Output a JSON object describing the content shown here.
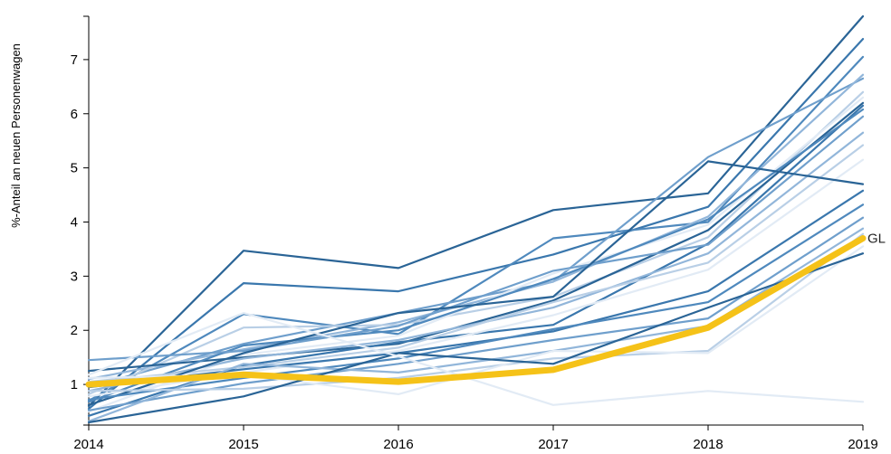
{
  "chart_data": {
    "type": "line",
    "ylabel": "%-Anteil an neuen Personenwagen",
    "xlabel": "",
    "x": [
      2014,
      2015,
      2016,
      2017,
      2018,
      2019
    ],
    "x_tick_labels": [
      "2014",
      "2015",
      "2016",
      "2017",
      "2018",
      "2019"
    ],
    "y_tick_labels": [
      "1",
      "2",
      "3",
      "4",
      "5",
      "6",
      "7"
    ],
    "y_ticks": [
      1,
      2,
      3,
      4,
      5,
      6,
      7
    ],
    "ylim": [
      0.25,
      7.8
    ],
    "grid": false,
    "colors": {
      "series": [
        "#2a6496",
        "#3a77ad",
        "#4f89bd",
        "#6f9fcc",
        "#92b6da",
        "#b9cfe6",
        "#e2ebf5"
      ],
      "highlight": "#f5c218"
    },
    "series": [
      {
        "values": [
          0.6,
          3.47,
          3.15,
          4.22,
          4.53,
          7.8
        ]
      },
      {
        "values": [
          0.55,
          2.87,
          2.72,
          3.4,
          4.28,
          7.38
        ]
      },
      {
        "values": [
          0.7,
          2.3,
          1.93,
          3.7,
          4.0,
          7.05
        ]
      },
      {
        "values": [
          0.95,
          1.75,
          2.32,
          2.9,
          5.2,
          6.65
        ]
      },
      {
        "values": [
          1.1,
          1.65,
          2.15,
          2.9,
          4.1,
          6.72
        ]
      },
      {
        "values": [
          0.82,
          2.05,
          2.1,
          2.62,
          3.72,
          6.4
        ]
      },
      {
        "values": [
          0.5,
          1.55,
          1.9,
          3.05,
          3.95,
          6.3
        ]
      },
      {
        "values": [
          1.25,
          1.5,
          1.75,
          2.55,
          3.85,
          6.2
        ]
      },
      {
        "values": [
          0.42,
          1.35,
          1.78,
          2.1,
          3.6,
          6.15
        ]
      },
      {
        "values": [
          0.68,
          1.72,
          2.0,
          2.95,
          4.05,
          6.08
        ]
      },
      {
        "values": [
          1.45,
          1.62,
          2.08,
          3.1,
          3.58,
          5.95
        ]
      },
      {
        "values": [
          0.88,
          1.48,
          1.82,
          2.42,
          3.42,
          5.65
        ]
      },
      {
        "values": [
          1.05,
          1.32,
          1.68,
          2.52,
          3.25,
          5.42
        ]
      },
      {
        "values": [
          0.78,
          1.22,
          1.62,
          2.28,
          3.12,
          5.15
        ]
      },
      {
        "values": [
          0.62,
          1.58,
          2.32,
          2.62,
          5.12,
          4.7
        ]
      },
      {
        "values": [
          0.95,
          1.28,
          1.58,
          1.98,
          2.72,
          4.58
        ]
      },
      {
        "values": [
          0.72,
          1.12,
          1.48,
          2.02,
          2.52,
          4.32
        ]
      },
      {
        "values": [
          0.52,
          1.02,
          1.38,
          1.82,
          2.22,
          4.08
        ]
      },
      {
        "values": [
          0.32,
          1.38,
          1.22,
          1.62,
          2.08,
          3.88
        ]
      },
      {
        "values": [
          0.88,
          0.92,
          1.12,
          1.48,
          1.62,
          3.78
        ]
      },
      {
        "values": [
          1.12,
          1.18,
          0.82,
          1.62,
          1.58,
          3.55
        ]
      },
      {
        "values": [
          0.3,
          0.78,
          1.58,
          1.38,
          2.42,
          3.42
        ]
      },
      {
        "values": [
          1.18,
          2.32,
          1.52,
          0.62,
          0.88,
          0.68
        ]
      }
    ],
    "highlight": {
      "label": "GL",
      "values": [
        1.0,
        1.18,
        1.05,
        1.27,
        2.05,
        3.7
      ]
    }
  }
}
